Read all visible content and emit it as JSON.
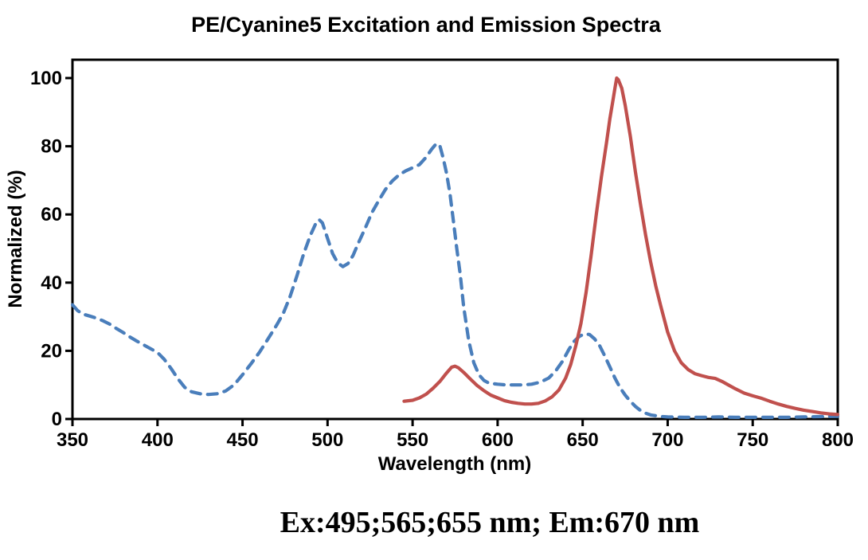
{
  "page": {
    "background_color": "#ffffff",
    "text_color": "#000000"
  },
  "chart_data": {
    "type": "line",
    "title": "PE/Cyanine5 Excitation and Emission Spectra",
    "xlabel": "Wavelength (nm)",
    "ylabel": "Normalized (%)",
    "caption": "Ex:495;565;655 nm; Em:670 nm",
    "xlim": [
      350,
      800
    ],
    "ylim": [
      0,
      100
    ],
    "x_ticks": [
      350,
      400,
      450,
      500,
      550,
      600,
      650,
      700,
      750,
      800
    ],
    "y_ticks": [
      0,
      20,
      40,
      60,
      80,
      100
    ],
    "grid": false,
    "legend": "none",
    "plot_border_color": "#000000",
    "series": [
      {
        "name": "excitation (dashed)",
        "style": "dashed",
        "color": "#4a7ebb",
        "points": [
          [
            350,
            33.5
          ],
          [
            353,
            31.8
          ],
          [
            356,
            30.8
          ],
          [
            360,
            30.2
          ],
          [
            364,
            29.6
          ],
          [
            368,
            28.8
          ],
          [
            372,
            27.8
          ],
          [
            376,
            26.5
          ],
          [
            380,
            25.3
          ],
          [
            384,
            24.0
          ],
          [
            388,
            22.8
          ],
          [
            392,
            21.7
          ],
          [
            396,
            20.6
          ],
          [
            400,
            19.5
          ],
          [
            404,
            17.5
          ],
          [
            408,
            14.8
          ],
          [
            412,
            11.8
          ],
          [
            416,
            9.3
          ],
          [
            420,
            8.0
          ],
          [
            425,
            7.4
          ],
          [
            430,
            7.2
          ],
          [
            435,
            7.4
          ],
          [
            440,
            8.2
          ],
          [
            445,
            10.0
          ],
          [
            450,
            13.0
          ],
          [
            455,
            16.2
          ],
          [
            460,
            19.6
          ],
          [
            465,
            23.5
          ],
          [
            470,
            27.5
          ],
          [
            474,
            31.0
          ],
          [
            478,
            36.0
          ],
          [
            482,
            42.0
          ],
          [
            486,
            48.5
          ],
          [
            490,
            54.0
          ],
          [
            493,
            57.3
          ],
          [
            495,
            58.5
          ],
          [
            497,
            57.5
          ],
          [
            500,
            53.0
          ],
          [
            503,
            48.5
          ],
          [
            506,
            45.8
          ],
          [
            509,
            44.7
          ],
          [
            512,
            45.6
          ],
          [
            515,
            48.0
          ],
          [
            518,
            51.5
          ],
          [
            522,
            55.8
          ],
          [
            526,
            60.5
          ],
          [
            530,
            64.0
          ],
          [
            534,
            67.3
          ],
          [
            538,
            69.8
          ],
          [
            542,
            71.6
          ],
          [
            546,
            72.8
          ],
          [
            550,
            73.7
          ],
          [
            554,
            74.6
          ],
          [
            558,
            76.8
          ],
          [
            561,
            79.0
          ],
          [
            564,
            80.8
          ],
          [
            566,
            80.2
          ],
          [
            568,
            76.5
          ],
          [
            570,
            72.0
          ],
          [
            572,
            66.0
          ],
          [
            574,
            58.0
          ],
          [
            576,
            50.0
          ],
          [
            578,
            42.5
          ],
          [
            580,
            33.0
          ],
          [
            583,
            23.0
          ],
          [
            586,
            16.5
          ],
          [
            589,
            13.0
          ],
          [
            592,
            11.3
          ],
          [
            595,
            10.5
          ],
          [
            600,
            10.2
          ],
          [
            605,
            10.0
          ],
          [
            610,
            10.0
          ],
          [
            615,
            10.0
          ],
          [
            620,
            10.2
          ],
          [
            625,
            10.8
          ],
          [
            630,
            12.0
          ],
          [
            634,
            14.0
          ],
          [
            638,
            16.8
          ],
          [
            642,
            20.5
          ],
          [
            645,
            22.8
          ],
          [
            648,
            24.2
          ],
          [
            651,
            25.0
          ],
          [
            654,
            24.8
          ],
          [
            657,
            23.5
          ],
          [
            660,
            21.5
          ],
          [
            663,
            18.5
          ],
          [
            666,
            15.3
          ],
          [
            669,
            12.0
          ],
          [
            672,
            9.2
          ],
          [
            675,
            7.0
          ],
          [
            678,
            5.2
          ],
          [
            681,
            3.7
          ],
          [
            684,
            2.5
          ],
          [
            687,
            1.7
          ],
          [
            690,
            1.2
          ],
          [
            695,
            0.8
          ],
          [
            700,
            0.6
          ],
          [
            710,
            0.5
          ],
          [
            720,
            0.5
          ],
          [
            730,
            0.6
          ],
          [
            740,
            0.5
          ],
          [
            750,
            0.5
          ],
          [
            760,
            0.5
          ],
          [
            770,
            0.5
          ],
          [
            780,
            0.6
          ],
          [
            790,
            0.7
          ],
          [
            800,
            0.8
          ]
        ]
      },
      {
        "name": "emission (solid)",
        "style": "solid",
        "color": "#c0504d",
        "points": [
          [
            545,
            5.2
          ],
          [
            550,
            5.5
          ],
          [
            554,
            6.2
          ],
          [
            558,
            7.3
          ],
          [
            562,
            9.0
          ],
          [
            566,
            11.0
          ],
          [
            570,
            13.5
          ],
          [
            573,
            15.2
          ],
          [
            575,
            15.5
          ],
          [
            577,
            15.0
          ],
          [
            580,
            13.7
          ],
          [
            584,
            11.7
          ],
          [
            588,
            9.8
          ],
          [
            592,
            8.3
          ],
          [
            596,
            7.0
          ],
          [
            600,
            6.2
          ],
          [
            604,
            5.4
          ],
          [
            608,
            4.9
          ],
          [
            612,
            4.6
          ],
          [
            616,
            4.4
          ],
          [
            620,
            4.4
          ],
          [
            624,
            4.6
          ],
          [
            628,
            5.3
          ],
          [
            632,
            6.5
          ],
          [
            636,
            8.5
          ],
          [
            640,
            12.0
          ],
          [
            643,
            16.0
          ],
          [
            646,
            21.5
          ],
          [
            649,
            28.0
          ],
          [
            652,
            37.0
          ],
          [
            655,
            48.0
          ],
          [
            658,
            60.0
          ],
          [
            661,
            71.0
          ],
          [
            664,
            81.0
          ],
          [
            666,
            88.0
          ],
          [
            668,
            94.0
          ],
          [
            669,
            97.0
          ],
          [
            670,
            100.0
          ],
          [
            671,
            99.5
          ],
          [
            673,
            97.0
          ],
          [
            675,
            92.0
          ],
          [
            678,
            83.0
          ],
          [
            681,
            72.5
          ],
          [
            684,
            63.0
          ],
          [
            687,
            54.0
          ],
          [
            690,
            46.0
          ],
          [
            693,
            39.0
          ],
          [
            696,
            33.0
          ],
          [
            700,
            25.5
          ],
          [
            704,
            20.0
          ],
          [
            708,
            16.5
          ],
          [
            712,
            14.5
          ],
          [
            716,
            13.3
          ],
          [
            720,
            12.7
          ],
          [
            724,
            12.2
          ],
          [
            728,
            11.9
          ],
          [
            732,
            11.0
          ],
          [
            736,
            9.9
          ],
          [
            740,
            8.8
          ],
          [
            745,
            7.6
          ],
          [
            750,
            6.8
          ],
          [
            755,
            6.1
          ],
          [
            760,
            5.2
          ],
          [
            765,
            4.4
          ],
          [
            770,
            3.7
          ],
          [
            775,
            3.1
          ],
          [
            780,
            2.6
          ],
          [
            785,
            2.2
          ],
          [
            790,
            1.8
          ],
          [
            795,
            1.5
          ],
          [
            800,
            1.3
          ]
        ]
      }
    ]
  }
}
